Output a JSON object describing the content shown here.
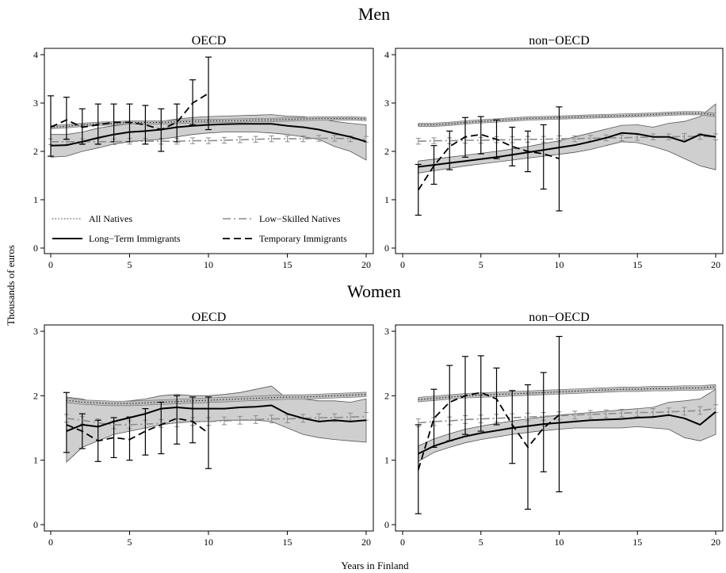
{
  "figure": {
    "group_titles": [
      "Men",
      "Women"
    ],
    "ylabel": "Thousands of euros",
    "xlabel": "Years in Finland"
  },
  "legend": [
    {
      "label": "All Natives",
      "style": "dotted"
    },
    {
      "label": "Low-Skilled Natives",
      "style": "dashdot"
    },
    {
      "label": "Long-Term Immigrants",
      "style": "solid"
    },
    {
      "label": "Temporary Immigrants",
      "style": "dashed"
    }
  ],
  "colors": {
    "band": "#cfcfcf",
    "low_skilled": "#8c8c8c",
    "line": "#000000"
  },
  "chart_data": [
    {
      "type": "line",
      "group": "Men",
      "title": "OECD",
      "xlim": [
        0,
        20
      ],
      "ylim": [
        0,
        4
      ],
      "xticks": [
        0,
        5,
        10,
        15,
        20
      ],
      "yticks": [
        0,
        1,
        2,
        3,
        4
      ],
      "series": [
        {
          "name": "All Natives",
          "x": [
            0,
            1,
            2,
            3,
            4,
            5,
            6,
            7,
            8,
            9,
            10,
            11,
            12,
            13,
            14,
            15,
            16,
            17,
            18,
            19,
            20
          ],
          "values": [
            2.5,
            2.52,
            2.55,
            2.57,
            2.58,
            2.6,
            2.6,
            2.6,
            2.61,
            2.62,
            2.63,
            2.63,
            2.64,
            2.65,
            2.65,
            2.66,
            2.67,
            2.68,
            2.68,
            2.68,
            2.67
          ]
        },
        {
          "name": "Low-Skilled Natives",
          "x": [
            0,
            1,
            2,
            3,
            4,
            5,
            6,
            7,
            8,
            9,
            10,
            11,
            12,
            13,
            14,
            15,
            16,
            17,
            18,
            19,
            20
          ],
          "values": [
            2.2,
            2.2,
            2.2,
            2.2,
            2.2,
            2.21,
            2.21,
            2.21,
            2.21,
            2.22,
            2.22,
            2.23,
            2.24,
            2.25,
            2.26,
            2.26,
            2.26,
            2.27,
            2.27,
            2.26,
            2.25
          ]
        },
        {
          "name": "Long-Term Immigrants",
          "x": [
            0,
            1,
            2,
            3,
            4,
            5,
            6,
            7,
            8,
            9,
            10,
            11,
            12,
            13,
            14,
            15,
            16,
            17,
            18,
            19,
            20
          ],
          "values": [
            2.12,
            2.13,
            2.2,
            2.28,
            2.35,
            2.4,
            2.42,
            2.45,
            2.5,
            2.53,
            2.55,
            2.56,
            2.57,
            2.57,
            2.57,
            2.53,
            2.5,
            2.45,
            2.37,
            2.3,
            2.2
          ],
          "ci_low": [
            1.88,
            1.9,
            2.0,
            2.07,
            2.15,
            2.2,
            2.23,
            2.25,
            2.3,
            2.35,
            2.38,
            2.4,
            2.4,
            2.4,
            2.38,
            2.35,
            2.3,
            2.25,
            2.1,
            2.0,
            1.82
          ],
          "ci_high": [
            2.35,
            2.35,
            2.4,
            2.48,
            2.53,
            2.57,
            2.6,
            2.62,
            2.67,
            2.7,
            2.72,
            2.73,
            2.74,
            2.75,
            2.76,
            2.73,
            2.72,
            2.68,
            2.62,
            2.58,
            2.55
          ]
        },
        {
          "name": "Temporary Immigrants",
          "x": [
            0,
            1,
            2,
            3,
            4,
            5,
            6,
            7,
            8,
            9,
            10
          ],
          "values": [
            2.5,
            2.65,
            2.5,
            2.55,
            2.6,
            2.6,
            2.55,
            2.45,
            2.6,
            3.0,
            3.2
          ],
          "ci_low": [
            1.9,
            2.25,
            2.15,
            2.15,
            2.2,
            2.2,
            2.15,
            2.0,
            2.2,
            2.55,
            2.45
          ],
          "ci_high": [
            3.15,
            3.12,
            2.88,
            2.98,
            2.98,
            2.98,
            2.95,
            2.88,
            2.98,
            3.48,
            3.95
          ]
        }
      ]
    },
    {
      "type": "line",
      "group": "Men",
      "title": "non−OECD",
      "xlim": [
        0,
        20
      ],
      "ylim": [
        0,
        4
      ],
      "xticks": [
        0,
        5,
        10,
        15,
        20
      ],
      "yticks": [
        0,
        1,
        2,
        3,
        4
      ],
      "series": [
        {
          "name": "All Natives",
          "x": [
            1,
            2,
            3,
            4,
            5,
            6,
            7,
            8,
            9,
            10,
            11,
            12,
            13,
            14,
            15,
            16,
            17,
            18,
            19,
            20
          ],
          "values": [
            2.55,
            2.55,
            2.57,
            2.6,
            2.62,
            2.64,
            2.66,
            2.68,
            2.69,
            2.7,
            2.71,
            2.72,
            2.73,
            2.74,
            2.75,
            2.76,
            2.78,
            2.79,
            2.79,
            2.75
          ]
        },
        {
          "name": "Low-Skilled Natives",
          "x": [
            1,
            2,
            3,
            4,
            5,
            6,
            7,
            8,
            9,
            10,
            11,
            12,
            13,
            14,
            15,
            16,
            17,
            18,
            19,
            20
          ],
          "values": [
            2.21,
            2.22,
            2.22,
            2.23,
            2.23,
            2.24,
            2.24,
            2.25,
            2.25,
            2.26,
            2.26,
            2.27,
            2.28,
            2.28,
            2.29,
            2.3,
            2.3,
            2.31,
            2.31,
            2.3
          ]
        },
        {
          "name": "Long-Term Immigrants",
          "x": [
            1,
            2,
            3,
            4,
            5,
            6,
            7,
            8,
            9,
            10,
            11,
            12,
            13,
            14,
            15,
            16,
            17,
            18,
            19,
            20
          ],
          "values": [
            1.68,
            1.72,
            1.76,
            1.8,
            1.84,
            1.88,
            1.93,
            1.98,
            2.03,
            2.08,
            2.13,
            2.2,
            2.28,
            2.38,
            2.36,
            2.3,
            2.3,
            2.2,
            2.35,
            2.3
          ],
          "ci_low": [
            1.55,
            1.6,
            1.65,
            1.7,
            1.74,
            1.78,
            1.82,
            1.86,
            1.9,
            1.94,
            1.98,
            2.04,
            2.12,
            2.2,
            2.18,
            2.1,
            2.0,
            1.85,
            1.7,
            1.62
          ],
          "ci_high": [
            1.8,
            1.84,
            1.88,
            1.92,
            1.96,
            2.0,
            2.05,
            2.1,
            2.16,
            2.22,
            2.3,
            2.38,
            2.46,
            2.54,
            2.55,
            2.5,
            2.58,
            2.62,
            2.72,
            2.98
          ]
        },
        {
          "name": "Temporary Immigrants",
          "x": [
            1,
            2,
            3,
            4,
            5,
            6,
            7,
            8,
            9,
            10
          ],
          "values": [
            1.2,
            1.7,
            2.1,
            2.3,
            2.35,
            2.25,
            2.1,
            2.0,
            1.95,
            1.85
          ],
          "ci_low": [
            0.68,
            1.32,
            1.62,
            1.88,
            1.95,
            1.85,
            1.7,
            1.58,
            1.22,
            0.77
          ],
          "ci_high": [
            1.73,
            2.12,
            2.42,
            2.7,
            2.72,
            2.65,
            2.5,
            2.42,
            2.55,
            2.92
          ]
        }
      ]
    },
    {
      "type": "line",
      "group": "Women",
      "title": "OECD",
      "xlim": [
        0,
        20
      ],
      "ylim": [
        0,
        3
      ],
      "xticks": [
        0,
        5,
        10,
        15,
        20
      ],
      "yticks": [
        0,
        1,
        2,
        3
      ],
      "series": [
        {
          "name": "All Natives",
          "x": [
            1,
            2,
            3,
            4,
            5,
            6,
            7,
            8,
            9,
            10,
            11,
            12,
            13,
            14,
            15,
            16,
            17,
            18,
            19,
            20
          ],
          "values": [
            1.93,
            1.9,
            1.89,
            1.88,
            1.88,
            1.89,
            1.9,
            1.91,
            1.92,
            1.93,
            1.94,
            1.95,
            1.96,
            1.97,
            1.98,
            1.98,
            1.99,
            2.0,
            2.01,
            2.02
          ]
        },
        {
          "name": "Low-Skilled Natives",
          "x": [
            1,
            2,
            3,
            4,
            5,
            6,
            7,
            8,
            9,
            10,
            11,
            12,
            13,
            14,
            15,
            16,
            17,
            18,
            19,
            20
          ],
          "values": [
            1.65,
            1.62,
            1.58,
            1.55,
            1.55,
            1.56,
            1.57,
            1.58,
            1.6,
            1.6,
            1.61,
            1.62,
            1.63,
            1.64,
            1.64,
            1.65,
            1.66,
            1.66,
            1.67,
            1.68
          ]
        },
        {
          "name": "Long-Term Immigrants",
          "x": [
            1,
            2,
            3,
            4,
            5,
            6,
            7,
            8,
            9,
            10,
            11,
            12,
            13,
            14,
            15,
            16,
            17,
            18,
            19,
            20
          ],
          "values": [
            1.45,
            1.55,
            1.52,
            1.6,
            1.66,
            1.72,
            1.8,
            1.82,
            1.8,
            1.8,
            1.8,
            1.82,
            1.83,
            1.85,
            1.72,
            1.65,
            1.6,
            1.62,
            1.6,
            1.62
          ],
          "ci_low": [
            0.97,
            1.2,
            1.3,
            1.4,
            1.45,
            1.5,
            1.55,
            1.58,
            1.6,
            1.6,
            1.62,
            1.62,
            1.62,
            1.6,
            1.5,
            1.4,
            1.35,
            1.32,
            1.3,
            1.28
          ],
          "ci_high": [
            1.98,
            1.95,
            1.88,
            1.9,
            1.92,
            1.95,
            2.0,
            2.02,
            2.0,
            2.0,
            2.02,
            2.05,
            2.1,
            2.15,
            1.95,
            1.95,
            1.92,
            1.92,
            1.9,
            1.95
          ]
        },
        {
          "name": "Temporary Immigrants",
          "x": [
            1,
            2,
            3,
            4,
            5,
            6,
            7,
            8,
            9,
            10
          ],
          "values": [
            1.55,
            1.45,
            1.3,
            1.35,
            1.32,
            1.45,
            1.55,
            1.65,
            1.6,
            1.42
          ],
          "ci_low": [
            1.12,
            1.18,
            0.98,
            1.04,
            1.0,
            1.08,
            1.1,
            1.25,
            1.27,
            0.87
          ],
          "ci_high": [
            2.05,
            1.72,
            1.62,
            1.66,
            1.67,
            1.8,
            1.9,
            2.0,
            1.98,
            1.98
          ]
        }
      ]
    },
    {
      "type": "line",
      "group": "Women",
      "title": "non−OECD",
      "xlim": [
        0,
        20
      ],
      "ylim": [
        0,
        3
      ],
      "xticks": [
        0,
        5,
        10,
        15,
        20
      ],
      "yticks": [
        0,
        1,
        2,
        3
      ],
      "series": [
        {
          "name": "All Natives",
          "x": [
            1,
            2,
            3,
            4,
            5,
            6,
            7,
            8,
            9,
            10,
            11,
            12,
            13,
            14,
            15,
            16,
            17,
            18,
            19,
            20
          ],
          "values": [
            1.94,
            1.96,
            1.98,
            2.0,
            2.01,
            2.02,
            2.03,
            2.04,
            2.05,
            2.06,
            2.07,
            2.08,
            2.09,
            2.1,
            2.1,
            2.11,
            2.11,
            2.12,
            2.12,
            2.14
          ]
        },
        {
          "name": "Low-Skilled Natives",
          "x": [
            1,
            2,
            3,
            4,
            5,
            6,
            7,
            8,
            9,
            10,
            11,
            12,
            13,
            14,
            15,
            16,
            17,
            18,
            19,
            20
          ],
          "values": [
            1.58,
            1.6,
            1.61,
            1.63,
            1.64,
            1.65,
            1.66,
            1.67,
            1.68,
            1.69,
            1.7,
            1.71,
            1.72,
            1.73,
            1.74,
            1.74,
            1.75,
            1.76,
            1.77,
            1.8
          ]
        },
        {
          "name": "Long-Term Immigrants",
          "x": [
            1,
            2,
            3,
            4,
            5,
            6,
            7,
            8,
            9,
            10,
            11,
            12,
            13,
            14,
            15,
            16,
            17,
            18,
            19,
            20
          ],
          "values": [
            1.1,
            1.22,
            1.3,
            1.37,
            1.42,
            1.46,
            1.5,
            1.53,
            1.56,
            1.58,
            1.6,
            1.62,
            1.63,
            1.64,
            1.66,
            1.67,
            1.7,
            1.65,
            1.55,
            1.75
          ],
          "ci_low": [
            0.98,
            1.12,
            1.2,
            1.27,
            1.32,
            1.36,
            1.4,
            1.43,
            1.46,
            1.48,
            1.5,
            1.5,
            1.5,
            1.5,
            1.52,
            1.5,
            1.48,
            1.35,
            1.3,
            1.4
          ],
          "ci_high": [
            1.22,
            1.33,
            1.41,
            1.48,
            1.53,
            1.57,
            1.61,
            1.64,
            1.67,
            1.7,
            1.72,
            1.74,
            1.76,
            1.78,
            1.8,
            1.82,
            1.9,
            1.92,
            1.95,
            2.1
          ]
        },
        {
          "name": "Temporary Immigrants",
          "x": [
            1,
            2,
            3,
            4,
            5,
            6,
            7,
            8,
            9,
            10
          ],
          "values": [
            0.85,
            1.65,
            1.9,
            2.0,
            2.05,
            1.95,
            1.55,
            1.2,
            1.5,
            1.7
          ],
          "ci_low": [
            0.17,
            1.2,
            1.3,
            1.4,
            1.45,
            1.55,
            0.95,
            0.24,
            0.82,
            0.51
          ],
          "ci_high": [
            1.55,
            2.1,
            2.47,
            2.61,
            2.62,
            2.43,
            2.08,
            2.17,
            2.36,
            2.92
          ]
        }
      ]
    }
  ]
}
